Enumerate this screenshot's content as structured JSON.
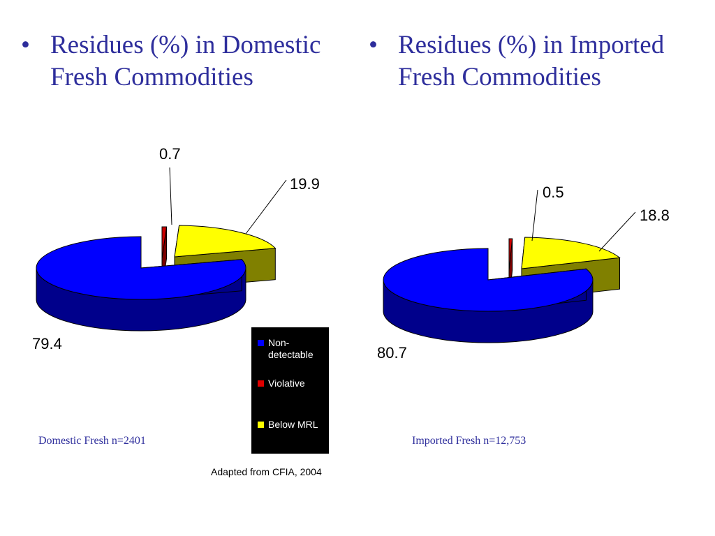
{
  "headings": {
    "bullet": "•",
    "left": {
      "line1": "Residues (%) in Domestic",
      "line2": "Fresh Commodities"
    },
    "right": {
      "line1": "Residues (%) in Imported",
      "line2": "Fresh Commodities"
    }
  },
  "legend": {
    "items": [
      {
        "label": "Non-\ndetectable",
        "color": "#0000ff"
      },
      {
        "label": "Violative",
        "color": "#e00000"
      },
      {
        "label": "Below MRL",
        "color": "#ffff00"
      }
    ]
  },
  "samples": {
    "left": "Domestic Fresh n=2401",
    "right": "Imported Fresh n=12,753"
  },
  "source": "Adapted from CFIA, 2004",
  "colors": {
    "heading_text": "#2e2e9c",
    "non_detectable_top": "#0000ff",
    "non_detectable_side": "#00008b",
    "violative_top": "#cc0000",
    "violative_side": "#7a0000",
    "below_mrl_top": "#ffff00",
    "below_mrl_side": "#808000"
  },
  "chart_data": [
    {
      "type": "pie",
      "style": "3d-exploded",
      "title": "",
      "categories": [
        "Non-detectable",
        "Violative",
        "Below MRL"
      ],
      "values": [
        79.4,
        0.7,
        19.9
      ],
      "data_labels": [
        "79.4",
        "0.7",
        "19.9"
      ],
      "legend": "right"
    },
    {
      "type": "pie",
      "style": "3d-exploded",
      "title": "",
      "categories": [
        "Non-detectable",
        "Violative",
        "Below MRL"
      ],
      "values": [
        80.7,
        0.5,
        18.8
      ],
      "data_labels": [
        "80.7",
        "0.5",
        "18.8"
      ],
      "legend": "none"
    }
  ]
}
